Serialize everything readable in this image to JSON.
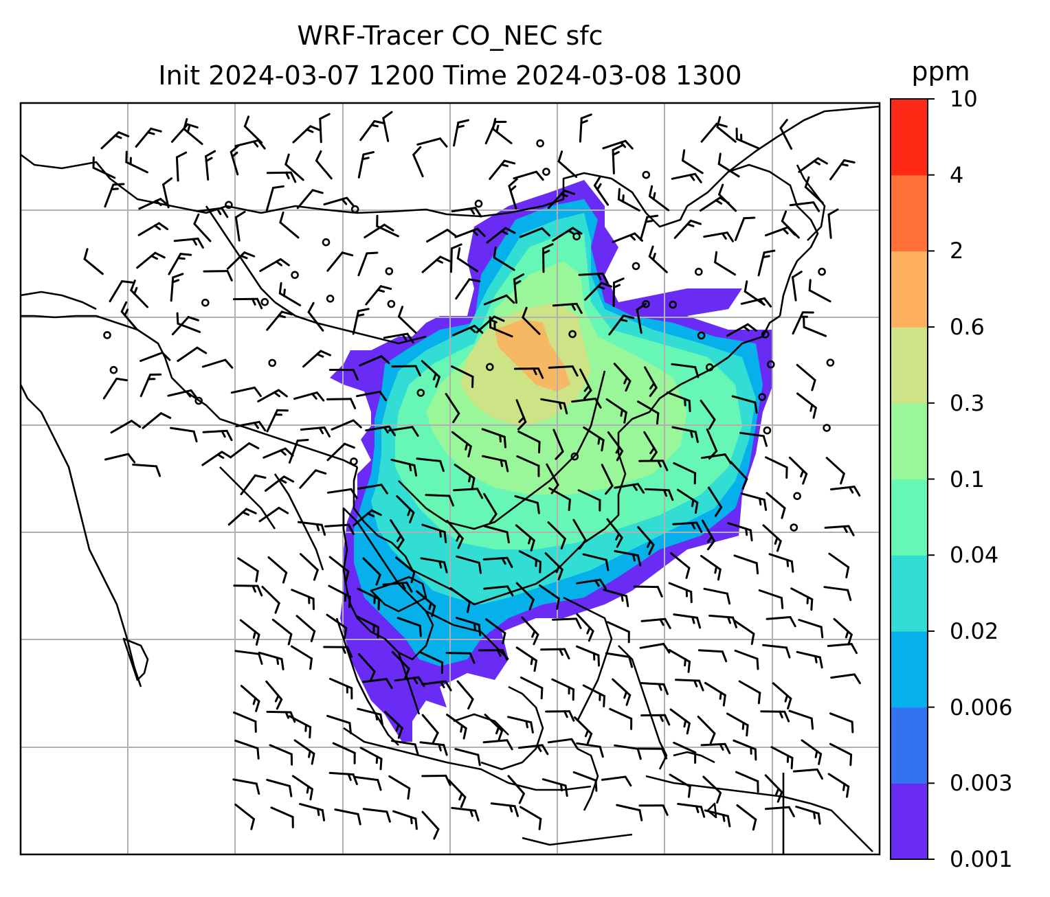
{
  "title": "WRF-Tracer CO_NEC sfc",
  "subtitle": "Init 2024-03-07 1200 Time 2024-03-08 1300",
  "colorbar": {
    "unit": "ppm",
    "ticks": [
      "0.001",
      "0.003",
      "0.006",
      "0.02",
      "0.04",
      "0.1",
      "0.3",
      "0.6",
      "2",
      "4",
      "10"
    ],
    "colors": [
      "#6a2cf5",
      "#3373f2",
      "#06b0ea",
      "#32ddd4",
      "#66f6b6",
      "#9af799",
      "#cee286",
      "#feb05e",
      "#ff7136",
      "#ff2a15"
    ]
  },
  "map": {
    "background": "#ffffff",
    "coastline_color": "#000000",
    "grid_color": "#b0b0b0",
    "barb_color": "#000000",
    "features": [
      "coastlines",
      "country-borders",
      "gridlines",
      "wind-barbs",
      "co-tracer-fill"
    ]
  }
}
